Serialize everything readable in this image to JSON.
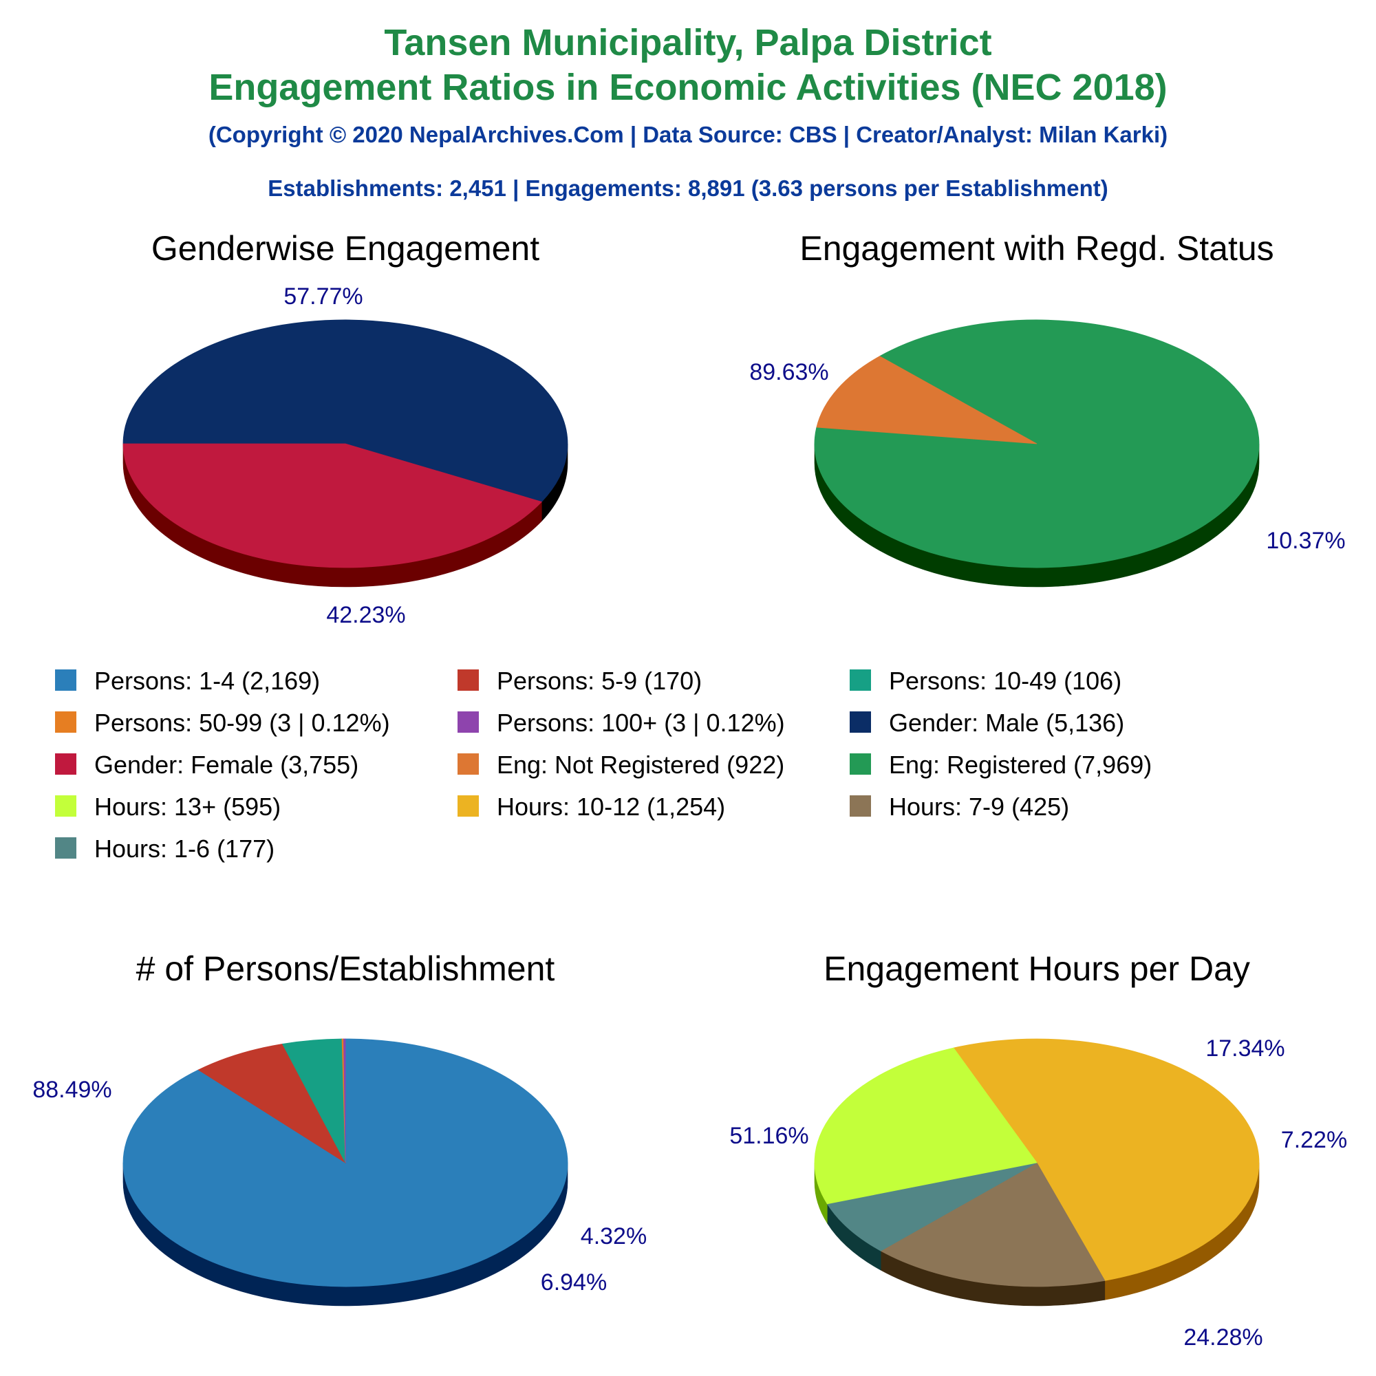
{
  "header": {
    "title_line1": "Tansen Municipality, Palpa District",
    "title_line2": "Engagement Ratios in Economic Activities (NEC 2018)",
    "copyright": "(Copyright © 2020 NepalArchives.Com | Data Source: CBS | Creator/Analyst: Milan Karki)",
    "summary": "Establishments: 2,451 | Engagements: 8,891 (3.63 persons per Establishment)"
  },
  "legend": [
    {
      "label": "Persons: 1-4 (2,169)",
      "color": "#2b7fba"
    },
    {
      "label": "Persons: 5-9 (170)",
      "color": "#c0392b"
    },
    {
      "label": "Persons: 10-49 (106)",
      "color": "#16a085"
    },
    {
      "label": "Persons: 50-99 (3 | 0.12%)",
      "color": "#e67e22"
    },
    {
      "label": "Persons: 100+ (3 | 0.12%)",
      "color": "#8e44ad"
    },
    {
      "label": "Gender: Male (5,136)",
      "color": "#0b2d66"
    },
    {
      "label": "Gender: Female (3,755)",
      "color": "#c0193e"
    },
    {
      "label": "Eng: Not Registered (922)",
      "color": "#dd7733"
    },
    {
      "label": "Eng: Registered (7,969)",
      "color": "#239a55"
    },
    {
      "label": "Hours: 13+ (595)",
      "color": "#c3ff3a"
    },
    {
      "label": "Hours: 10-12 (1,254)",
      "color": "#ecb322"
    },
    {
      "label": "Hours: 7-9 (425)",
      "color": "#8c7556"
    },
    {
      "label": "Hours: 1-6 (177)",
      "color": "#528686"
    }
  ],
  "chart_data": [
    {
      "type": "pie",
      "title": "Genderwise Engagement",
      "slices": [
        {
          "name": "Gender: Male",
          "value": 5136,
          "percent_label": "57.77%",
          "color": "#0b2d66",
          "side_color": "#000000"
        },
        {
          "name": "Gender: Female",
          "value": 3755,
          "percent_label": "42.23%",
          "color": "#c0193e",
          "side_color": "#6b0000"
        }
      ]
    },
    {
      "type": "pie",
      "title": "Engagement with Regd. Status",
      "slices": [
        {
          "name": "Eng: Registered",
          "value": 7969,
          "percent_label": "89.63%",
          "color": "#239a55",
          "side_color": "#003d00"
        },
        {
          "name": "Eng: Not Registered",
          "value": 922,
          "percent_label": "10.37%",
          "color": "#dd7733",
          "side_color": "#7a1a00"
        }
      ]
    },
    {
      "type": "pie",
      "title": "# of Persons/Establishment",
      "slices": [
        {
          "name": "Persons: 1-4",
          "value": 2169,
          "percent_label": "88.49%",
          "color": "#2b7fba",
          "side_color": "#002455"
        },
        {
          "name": "Persons: 5-9",
          "value": 170,
          "percent_label": "6.94%",
          "color": "#c0392b",
          "side_color": "#640000"
        },
        {
          "name": "Persons: 10-49",
          "value": 106,
          "percent_label": "4.32%",
          "color": "#16a085",
          "side_color": "#004a33"
        },
        {
          "name": "Persons: 50-99",
          "value": 3,
          "percent_label": "",
          "color": "#e67e22",
          "side_color": "#7a3000"
        },
        {
          "name": "Persons: 100+",
          "value": 3,
          "percent_label": "",
          "color": "#8e44ad",
          "side_color": "#3a0055"
        }
      ]
    },
    {
      "type": "pie",
      "title": "Engagement Hours per Day",
      "slices": [
        {
          "name": "Hours: 10-12",
          "value": 1254,
          "percent_label": "51.16%",
          "color": "#ecb322",
          "side_color": "#945a00"
        },
        {
          "name": "Hours: 7-9",
          "value": 425,
          "percent_label": "17.34%",
          "color": "#8c7556",
          "side_color": "#3d2a10"
        },
        {
          "name": "Hours: 1-6",
          "value": 177,
          "percent_label": "7.22%",
          "color": "#528686",
          "side_color": "#0d3a3a"
        },
        {
          "name": "Hours: 13+",
          "value": 595,
          "percent_label": "24.28%",
          "color": "#c3ff3a",
          "side_color": "#6aa800"
        }
      ]
    }
  ]
}
